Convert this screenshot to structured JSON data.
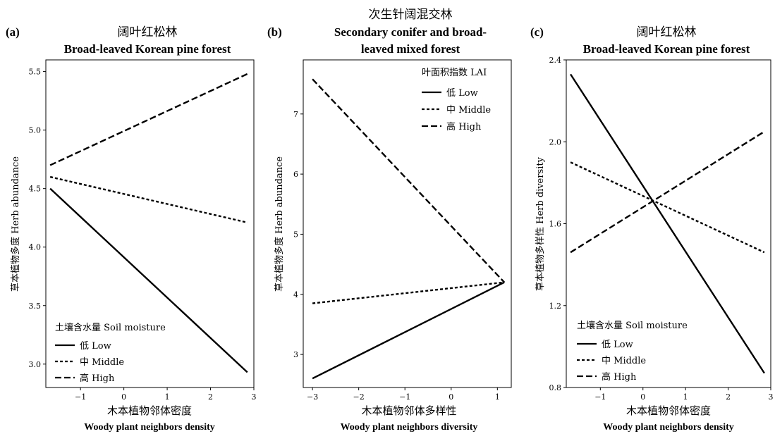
{
  "chart_data": [
    {
      "type": "line",
      "panel_label": "(a)",
      "title_cn": "阔叶红松林",
      "title_en": "Broad-leaved Korean pine forest",
      "xlabel_cn": "木本植物邻体密度",
      "xlabel_en": "Woody plant neighbors density",
      "ylabel": "草本植物多度  Herb abundance",
      "xlim": [
        -1.8,
        3.0
      ],
      "ylim": [
        2.8,
        5.6
      ],
      "xticks": [
        -1,
        0,
        1,
        2,
        3
      ],
      "yticks": [
        3.0,
        3.5,
        4.0,
        4.5,
        5.0,
        5.5
      ],
      "ytick_labels": [
        "3.0",
        "3.5",
        "4.0",
        "4.5",
        "5.0",
        "5.5"
      ],
      "legend": {
        "title": "土壤含水量 Soil moisture",
        "position": "bottom-left"
      },
      "series": [
        {
          "name": "低 Low",
          "style": "solid",
          "x": [
            -1.7,
            2.85
          ],
          "y": [
            4.5,
            2.93
          ]
        },
        {
          "name": "中 Middle",
          "style": "dotted",
          "x": [
            -1.7,
            2.85
          ],
          "y": [
            4.6,
            4.21
          ]
        },
        {
          "name": "高 High",
          "style": "dashed",
          "x": [
            -1.7,
            2.85
          ],
          "y": [
            4.7,
            5.48
          ]
        }
      ]
    },
    {
      "type": "line",
      "panel_label": "(b)",
      "title_cn": "次生针阔混交林",
      "title_en_line1": "Secondary conifer and broad-",
      "title_en_line2": "leaved mixed forest",
      "xlabel_cn": "木本植物邻体多样性",
      "xlabel_en": "Woody plant neighbors diversity",
      "ylabel": "草本植物多度  Herb abundance",
      "xlim": [
        -3.2,
        1.3
      ],
      "ylim": [
        2.45,
        7.9
      ],
      "xticks": [
        -3,
        -2,
        -1,
        0,
        1
      ],
      "yticks": [
        3,
        4,
        5,
        6,
        7
      ],
      "ytick_labels": [
        "3",
        "4",
        "5",
        "6",
        "7"
      ],
      "legend": {
        "title": "叶面积指数  LAI",
        "position": "top-right"
      },
      "series": [
        {
          "name": "低 Low",
          "style": "solid",
          "x": [
            -3.0,
            1.15
          ],
          "y": [
            2.6,
            4.2
          ]
        },
        {
          "name": "中 Middle",
          "style": "dotted",
          "x": [
            -3.0,
            1.15
          ],
          "y": [
            3.85,
            4.2
          ]
        },
        {
          "name": "高 High",
          "style": "dashed",
          "x": [
            -3.0,
            1.15
          ],
          "y": [
            7.58,
            4.2
          ]
        }
      ]
    },
    {
      "type": "line",
      "panel_label": "(c)",
      "title_cn": "阔叶红松林",
      "title_en": "Broad-leaved Korean pine forest",
      "xlabel_cn": "木本植物邻体密度",
      "xlabel_en": "Woody plant neighbors density",
      "ylabel": "草本植物多样性  Herb diversity",
      "xlim": [
        -1.8,
        3.0
      ],
      "ylim": [
        0.8,
        2.4
      ],
      "xticks": [
        -1,
        0,
        1,
        2,
        3
      ],
      "yticks": [
        0.8,
        1.2,
        1.6,
        2.0,
        2.4
      ],
      "ytick_labels": [
        "0.8",
        "1.2",
        "1.6",
        "2.0",
        "2.4"
      ],
      "legend": {
        "title": "土壤含水量 Soil moisture",
        "position": "bottom-left"
      },
      "series": [
        {
          "name": "低 Low",
          "style": "solid",
          "x": [
            -1.7,
            2.85
          ],
          "y": [
            2.33,
            0.87
          ]
        },
        {
          "name": "中 Middle",
          "style": "dotted",
          "x": [
            -1.7,
            2.85
          ],
          "y": [
            1.9,
            1.46
          ]
        },
        {
          "name": "高 High",
          "style": "dashed",
          "x": [
            -1.7,
            2.85
          ],
          "y": [
            1.46,
            2.05
          ]
        }
      ]
    }
  ]
}
